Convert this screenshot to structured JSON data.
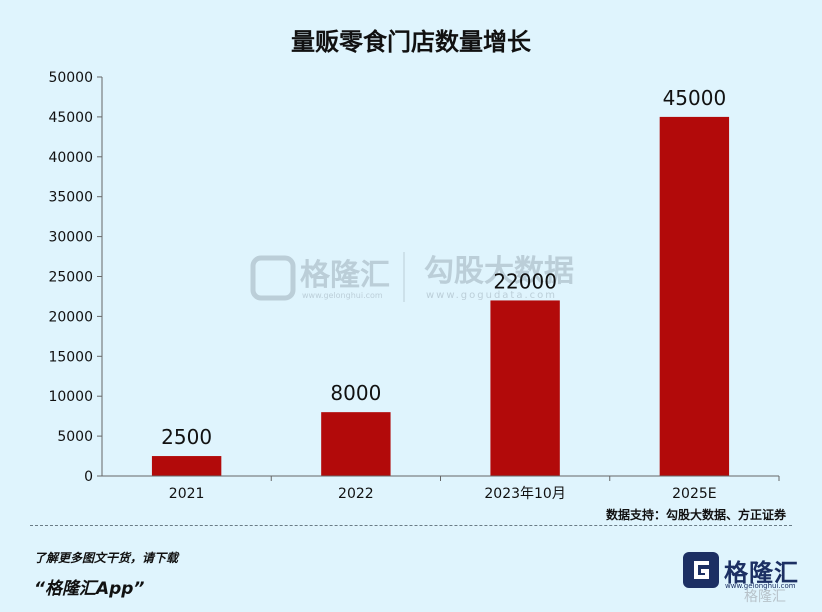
{
  "chart_data": {
    "type": "bar",
    "title": "量贩零食门店数量增长",
    "categories": [
      "2021",
      "2022",
      "2023年10月",
      "2025E"
    ],
    "values": [
      2500,
      8000,
      22000,
      45000
    ],
    "data_labels": [
      "2500",
      "8000",
      "22000",
      "45000"
    ],
    "y_ticks": [
      0,
      5000,
      10000,
      15000,
      20000,
      25000,
      30000,
      35000,
      40000,
      45000,
      50000
    ],
    "ylim": [
      0,
      50000
    ],
    "bar_color": "#b20a0a",
    "source": "数据支持：勾股大数据、方正证券"
  },
  "watermark": {
    "brand": "格隆汇",
    "brand_url": "www.gelonghui.com",
    "partner": "勾股大数据",
    "partner_url": "www.gogudata.com"
  },
  "footer": {
    "line1": "了解更多图文干货，请下载",
    "line2": "“格隆汇App”",
    "logo_name": "格隆汇",
    "logo_url": "www.gelonghui.com",
    "corner_logo": "格隆汇"
  },
  "colors": {
    "background": "#dff4fd",
    "axis": "#666666",
    "logo": "#1c2f63"
  }
}
